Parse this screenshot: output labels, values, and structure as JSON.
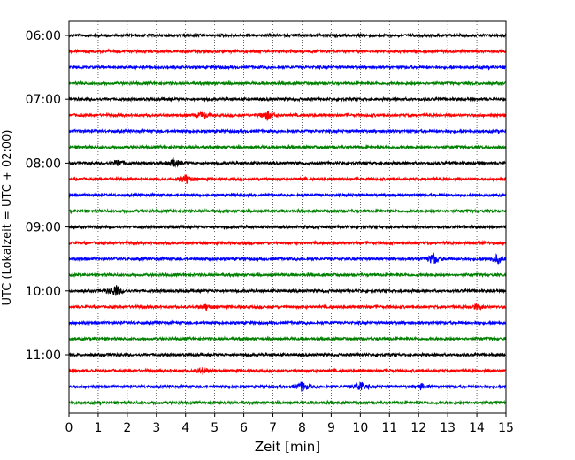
{
  "chart_data": {
    "type": "line",
    "title": "",
    "xlabel": "Zeit  [min]",
    "ylabel": "UTC (Lokalzeit = UTC + 02:00)",
    "xlim": [
      0,
      15
    ],
    "x_ticks": [
      "0",
      "1",
      "2",
      "3",
      "4",
      "5",
      "6",
      "7",
      "8",
      "9",
      "10",
      "11",
      "12",
      "13",
      "14",
      "15"
    ],
    "y_ticks": [
      {
        "label": "06:00",
        "row": 0
      },
      {
        "label": "07:00",
        "row": 4
      },
      {
        "label": "08:00",
        "row": 8
      },
      {
        "label": "09:00",
        "row": 12
      },
      {
        "label": "10:00",
        "row": 16
      },
      {
        "label": "11:00",
        "row": 20
      }
    ],
    "rows_per_hour": 4,
    "minutes_per_row": 15,
    "row_count": 24,
    "color_cycle": [
      "#000000",
      "#ff0000",
      "#0000ff",
      "#008000"
    ],
    "grid": "vertical dotted",
    "legend": "none",
    "events": [
      {
        "row": 5,
        "minute": 4.6,
        "amp": 0.6
      },
      {
        "row": 5,
        "minute": 6.8,
        "amp": 0.9
      },
      {
        "row": 8,
        "minute": 1.7,
        "amp": 0.6
      },
      {
        "row": 8,
        "minute": 3.6,
        "amp": 0.8
      },
      {
        "row": 9,
        "minute": 4.0,
        "amp": 0.9
      },
      {
        "row": 13,
        "minute": 14.2,
        "amp": 0.2
      },
      {
        "row": 14,
        "minute": 12.5,
        "amp": 1.1
      },
      {
        "row": 14,
        "minute": 14.7,
        "amp": 0.8
      },
      {
        "row": 16,
        "minute": 1.6,
        "amp": 1.2
      },
      {
        "row": 17,
        "minute": 4.7,
        "amp": 0.5
      },
      {
        "row": 17,
        "minute": 14.0,
        "amp": 0.5
      },
      {
        "row": 21,
        "minute": 4.6,
        "amp": 0.6
      },
      {
        "row": 22,
        "minute": 8.0,
        "amp": 0.9
      },
      {
        "row": 22,
        "minute": 10.0,
        "amp": 1.0
      },
      {
        "row": 22,
        "minute": 12.1,
        "amp": 0.5
      }
    ]
  }
}
